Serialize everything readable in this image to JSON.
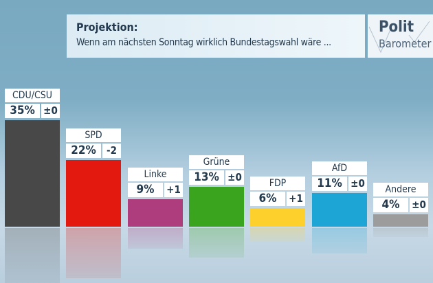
{
  "header": {
    "title": "Projektion:",
    "subtitle": "Wenn am nächsten Sonntag wirklich Bundestagswahl wäre ..."
  },
  "logo": {
    "line1": "Polit",
    "line2": "Barometer"
  },
  "chart_data": {
    "type": "bar",
    "title": "Projektion: Wenn am nächsten Sonntag wirklich Bundestagswahl wäre ...",
    "categories": [
      "CDU/CSU",
      "SPD",
      "Linke",
      "Grüne",
      "FDP",
      "AfD",
      "Andere"
    ],
    "values": [
      35,
      22,
      9,
      13,
      6,
      11,
      4
    ],
    "value_labels": [
      "35%",
      "22%",
      "9%",
      "13%",
      "6%",
      "11%",
      "4%"
    ],
    "changes": [
      "±0",
      "-2",
      "+1",
      "±0",
      "+1",
      "±0",
      "±0"
    ],
    "colors": [
      "#484848",
      "#e3190f",
      "#ae3d7e",
      "#3aa41f",
      "#fdd02b",
      "#1da5d6",
      "#9c9c9c"
    ],
    "unit": "%",
    "ylim": [
      0,
      35
    ],
    "grid": false
  }
}
